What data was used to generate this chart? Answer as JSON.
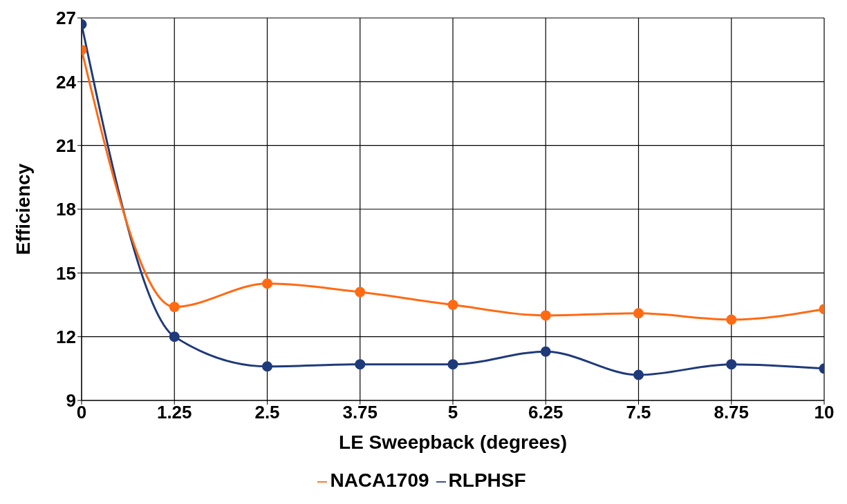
{
  "chart_data": {
    "type": "line",
    "xlabel": "LE Sweepback (degrees)",
    "ylabel": "Efficiency",
    "x": [
      0,
      1.25,
      2.5,
      3.75,
      5,
      6.25,
      7.5,
      8.75,
      10
    ],
    "series": [
      {
        "name": "RLPHSF",
        "color": "#1f3a7a",
        "values": [
          26.7,
          12.0,
          10.6,
          10.7,
          10.7,
          11.3,
          10.2,
          10.7,
          10.5
        ]
      },
      {
        "name": "NACA1709",
        "color": "#ff6a13",
        "values": [
          25.5,
          13.4,
          14.5,
          14.1,
          13.5,
          13.0,
          13.1,
          12.8,
          13.3
        ]
      }
    ],
    "xlim": [
      0,
      10
    ],
    "xticks": [
      0,
      1.25,
      2.5,
      3.75,
      5,
      6.25,
      7.5,
      8.75,
      10
    ],
    "ylim": [
      9,
      27
    ],
    "yticks": [
      9,
      12,
      15,
      18,
      21,
      24,
      27
    ],
    "grid": true,
    "legend": "bottom",
    "marker": "circle",
    "line_style": "solid"
  }
}
